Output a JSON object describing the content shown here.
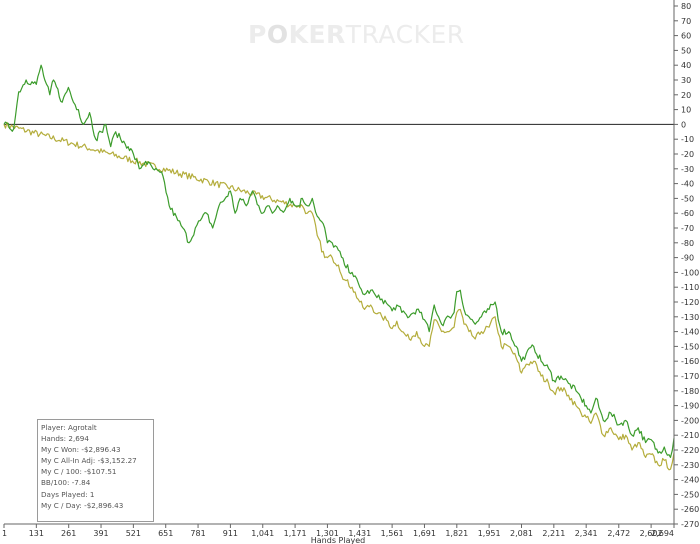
{
  "watermark": {
    "brand_left": "P",
    "brand_o": "O",
    "brand_mid": "KER",
    "brand_right": "TRACKER"
  },
  "stats_box": {
    "rows": [
      "Player: Agrotalt",
      "Hands: 2,694",
      "My C Won: -$2,896.43",
      "My C All-In Adj: -$3,152.27",
      "My C / 100: -$107.51",
      "BB/100: -7.84",
      "Days Played: 1",
      "My C / Day: -$2,896.43"
    ]
  },
  "chart_data": {
    "type": "line",
    "xlabel": "Hands Played",
    "ylabel": "",
    "xlim": [
      1,
      2694
    ],
    "ylim": [
      -270,
      80
    ],
    "x_ticks": [
      "1",
      "131",
      "261",
      "391",
      "521",
      "651",
      "781",
      "911",
      "1,041",
      "1,171",
      "1,301",
      "1,431",
      "1,561",
      "1,691",
      "1,821",
      "1,951",
      "2,081",
      "2,211",
      "2,341",
      "2,472",
      "2,602",
      "2,694"
    ],
    "y_ticks": [
      80,
      70,
      60,
      50,
      40,
      30,
      20,
      10,
      0,
      -10,
      -20,
      -30,
      -40,
      -50,
      -60,
      -70,
      -80,
      -90,
      -100,
      -110,
      -120,
      -130,
      -140,
      -150,
      -160,
      -170,
      -180,
      -190,
      -200,
      -210,
      -220,
      -230,
      -240,
      -250,
      -260,
      -270
    ],
    "zero_line": 0,
    "grid": false,
    "series": [
      {
        "color": "#3c9c2c",
        "x": [
          1,
          40,
          60,
          90,
          131,
          150,
          165,
          185,
          200,
          235,
          260,
          280,
          300,
          320,
          345,
          370,
          391,
          410,
          430,
          450,
          470,
          500,
          521,
          545,
          570,
          600,
          640,
          665,
          700,
          720,
          745,
          770,
          790,
          815,
          840,
          865,
          890,
          911,
          930,
          950,
          975,
          1000,
          1025,
          1041,
          1060,
          1080,
          1100,
          1130,
          1150,
          1171,
          1185,
          1200,
          1220,
          1240,
          1260,
          1290,
          1301,
          1320,
          1345,
          1370,
          1400,
          1431,
          1450,
          1475,
          1500,
          1520,
          1545,
          1561,
          1580,
          1600,
          1630,
          1660,
          1691,
          1710,
          1730,
          1760,
          1790,
          1810,
          1821,
          1835,
          1850,
          1870,
          1895,
          1920,
          1951,
          1975,
          2000,
          2030,
          2060,
          2081,
          2100,
          2130,
          2160,
          2190,
          2211,
          2240,
          2270,
          2300,
          2320,
          2341,
          2360,
          2380,
          2410,
          2440,
          2472,
          2500,
          2525,
          2550,
          2580,
          2602,
          2630,
          2655,
          2680,
          2694
        ],
        "y": [
          0,
          -3,
          22,
          30,
          27,
          40,
          30,
          20,
          30,
          15,
          25,
          15,
          10,
          0,
          8,
          -10,
          -5,
          0,
          -15,
          -5,
          -10,
          -15,
          -20,
          -30,
          -25,
          -30,
          -35,
          -55,
          -65,
          -70,
          -80,
          -70,
          -65,
          -60,
          -70,
          -55,
          -50,
          -45,
          -60,
          -50,
          -55,
          -45,
          -55,
          -60,
          -55,
          -60,
          -55,
          -58,
          -50,
          -55,
          -55,
          -50,
          -55,
          -50,
          -62,
          -70,
          -80,
          -80,
          -85,
          -95,
          -100,
          -110,
          -115,
          -112,
          -117,
          -118,
          -122,
          -126,
          -122,
          -127,
          -130,
          -125,
          -132,
          -140,
          -122,
          -135,
          -130,
          -127,
          -113,
          -112,
          -125,
          -130,
          -135,
          -130,
          -125,
          -120,
          -140,
          -140,
          -150,
          -160,
          -155,
          -150,
          -160,
          -165,
          -173,
          -170,
          -175,
          -180,
          -185,
          -190,
          -195,
          -185,
          -200,
          -195,
          -203,
          -200,
          -210,
          -205,
          -215,
          -213,
          -222,
          -218,
          -225,
          -212
        ]
      },
      {
        "color": "#b4ad3c",
        "x": [
          1,
          1171,
          1185,
          1200,
          1220,
          1240,
          1260,
          1290,
          1301,
          1320,
          1345,
          1370,
          1400,
          1431,
          1450,
          1475,
          1500,
          1520,
          1545,
          1561,
          1580,
          1600,
          1630,
          1660,
          1691,
          1710,
          1730,
          1760,
          1790,
          1810,
          1821,
          1835,
          1850,
          1870,
          1895,
          1920,
          1951,
          1975,
          2000,
          2030,
          2060,
          2081,
          2100,
          2130,
          2160,
          2190,
          2211,
          2240,
          2270,
          2300,
          2320,
          2341,
          2360,
          2380,
          2410,
          2440,
          2472,
          2500,
          2525,
          2550,
          2580,
          2602,
          2630,
          2655,
          2680,
          2694
        ],
        "y": [
          0,
          -55,
          -55,
          -55,
          -60,
          -60,
          -75,
          -90,
          -90,
          -90,
          -95,
          -105,
          -110,
          -120,
          -125,
          -122,
          -128,
          -130,
          -133,
          -138,
          -133,
          -140,
          -145,
          -140,
          -150,
          -150,
          -132,
          -140,
          -140,
          -137,
          -127,
          -125,
          -135,
          -140,
          -145,
          -140,
          -137,
          -130,
          -150,
          -150,
          -158,
          -168,
          -162,
          -160,
          -170,
          -175,
          -181,
          -178,
          -183,
          -190,
          -195,
          -198,
          -202,
          -195,
          -210,
          -205,
          -213,
          -210,
          -220,
          -215,
          -225,
          -223,
          -230,
          -227,
          -233,
          -222
        ]
      }
    ]
  }
}
